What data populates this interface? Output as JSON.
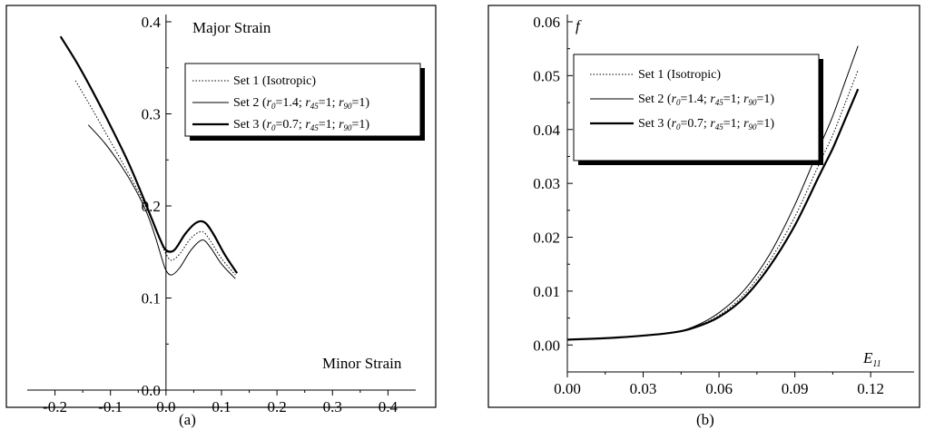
{
  "chart_data": [
    {
      "type": "line",
      "panel_label": "(a)",
      "xlabel": "Minor Strain",
      "ylabel": "Major Strain",
      "xlim": [
        -0.25,
        0.45
      ],
      "ylim": [
        0.0,
        0.4
      ],
      "x_ticks": [
        "-0.2",
        "-0.1",
        "0.0",
        "0.1",
        "0.2",
        "0.3",
        "0.4"
      ],
      "x_tick_values": [
        -0.2,
        -0.1,
        0.0,
        0.1,
        0.2,
        0.3,
        0.4
      ],
      "y_ticks": [
        "0.0",
        "0.1",
        "0.2",
        "0.3",
        "0.4"
      ],
      "y_tick_values": [
        0.0,
        0.1,
        0.2,
        0.3,
        0.4
      ],
      "legend_position": "top-right",
      "series": [
        {
          "name": "Set 1 (Isotropic)",
          "style": "dotted",
          "x": [
            -0.163,
            -0.13,
            -0.1,
            -0.07,
            -0.045,
            -0.025,
            -0.01,
            0.0,
            0.01,
            0.025,
            0.045,
            0.065,
            0.08,
            0.1,
            0.125
          ],
          "y": [
            0.336,
            0.302,
            0.27,
            0.238,
            0.21,
            0.184,
            0.162,
            0.148,
            0.141,
            0.148,
            0.165,
            0.172,
            0.162,
            0.143,
            0.125
          ]
        },
        {
          "name": "Set 2 (r0=1.4; r45=1; r90=1)",
          "style": "thin",
          "x": [
            -0.14,
            -0.11,
            -0.08,
            -0.055,
            -0.035,
            -0.02,
            -0.008,
            0.0,
            0.01,
            0.025,
            0.045,
            0.065,
            0.08,
            0.1,
            0.125
          ],
          "y": [
            0.288,
            0.268,
            0.243,
            0.218,
            0.193,
            0.168,
            0.144,
            0.13,
            0.125,
            0.133,
            0.152,
            0.163,
            0.155,
            0.137,
            0.121
          ]
        },
        {
          "name": "Set 3 (r0=0.7; r45=1; r90=1)",
          "style": "thick",
          "x": [
            -0.19,
            -0.16,
            -0.13,
            -0.1,
            -0.07,
            -0.045,
            -0.025,
            -0.01,
            0.0,
            0.015,
            0.035,
            0.055,
            0.07,
            0.085,
            0.105,
            0.128
          ],
          "y": [
            0.384,
            0.355,
            0.322,
            0.287,
            0.25,
            0.215,
            0.185,
            0.163,
            0.152,
            0.152,
            0.17,
            0.182,
            0.182,
            0.17,
            0.148,
            0.127
          ]
        }
      ]
    },
    {
      "type": "line",
      "panel_label": "(b)",
      "xlabel": "E",
      "xlabel_sub": "11",
      "ylabel": "f",
      "xlim": [
        0.0,
        0.13
      ],
      "ylim": [
        -0.005,
        0.06
      ],
      "x_ticks": [
        "0.00",
        "0.03",
        "0.06",
        "0.09",
        "0.12"
      ],
      "x_tick_values": [
        0.0,
        0.03,
        0.06,
        0.09,
        0.12
      ],
      "y_ticks": [
        "0.00",
        "0.01",
        "0.02",
        "0.03",
        "0.04",
        "0.05",
        "0.06"
      ],
      "y_tick_values": [
        0.0,
        0.01,
        0.02,
        0.03,
        0.04,
        0.05,
        0.06
      ],
      "legend_position": "top-left",
      "series": [
        {
          "name": "Set 1 (Isotropic)",
          "style": "dotted",
          "x": [
            0.0,
            0.02,
            0.04,
            0.05,
            0.06,
            0.07,
            0.08,
            0.09,
            0.1,
            0.105,
            0.11,
            0.115
          ],
          "y": [
            0.001,
            0.0014,
            0.0022,
            0.0033,
            0.0055,
            0.0094,
            0.0156,
            0.0238,
            0.034,
            0.039,
            0.045,
            0.051
          ]
        },
        {
          "name": "Set 2 (r0=1.4; r45=1; r90=1)",
          "style": "thin",
          "x": [
            0.0,
            0.02,
            0.04,
            0.05,
            0.06,
            0.07,
            0.08,
            0.09,
            0.1,
            0.105,
            0.11,
            0.115
          ],
          "y": [
            0.001,
            0.0014,
            0.0022,
            0.0034,
            0.006,
            0.0102,
            0.0168,
            0.026,
            0.037,
            0.0425,
            0.049,
            0.0555
          ]
        },
        {
          "name": "Set 3 (r0=0.7; r45=1; r90=1)",
          "style": "thick",
          "x": [
            0.0,
            0.02,
            0.04,
            0.05,
            0.06,
            0.07,
            0.08,
            0.09,
            0.1,
            0.105,
            0.11,
            0.115
          ],
          "y": [
            0.001,
            0.0014,
            0.0022,
            0.0032,
            0.0052,
            0.0088,
            0.0146,
            0.0222,
            0.0318,
            0.0365,
            0.042,
            0.0475
          ]
        }
      ]
    }
  ],
  "legend_entries": [
    {
      "prefix": "Set 1 (Isotropic)",
      "parts": []
    },
    {
      "prefix": "Set 2 (",
      "parts": [
        {
          "sym": "r",
          "sub": "0",
          "val": "=1.4; "
        },
        {
          "sym": "r",
          "sub": "45",
          "val": "=1; "
        },
        {
          "sym": "r",
          "sub": "90",
          "val": "=1)"
        }
      ]
    },
    {
      "prefix": "Set 3 (",
      "parts": [
        {
          "sym": "r",
          "sub": "0",
          "val": "=0.7; "
        },
        {
          "sym": "r",
          "sub": "45",
          "val": "=1; "
        },
        {
          "sym": "r",
          "sub": "90",
          "val": "=1)"
        }
      ]
    }
  ]
}
